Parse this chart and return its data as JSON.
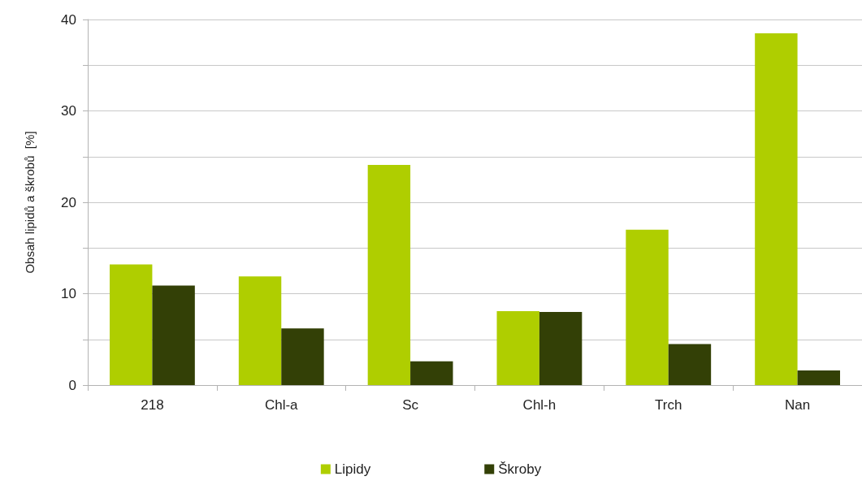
{
  "chart_data": {
    "type": "bar",
    "ylabel": "Obsah lipidů a škrobů  [%]",
    "categories": [
      "218",
      "Chl-a",
      "Sc",
      "Chl-h",
      "Trch",
      "Nan"
    ],
    "series": [
      {
        "name": "Lipidy",
        "color": "#afce00",
        "values": [
          13.2,
          11.9,
          24.1,
          8.1,
          17.0,
          38.5
        ]
      },
      {
        "name": "Škroby",
        "color": "#334006",
        "values": [
          10.9,
          6.2,
          2.6,
          8.0,
          4.5,
          1.6
        ]
      }
    ],
    "ylim": [
      0,
      40
    ],
    "yticks": [
      0,
      {
        "value": 5,
        "label": null
      },
      10,
      {
        "value": 15,
        "label": null
      },
      20,
      {
        "value": 25,
        "label": null
      },
      30,
      {
        "value": 35,
        "label": null
      },
      40
    ],
    "grid": "y",
    "legend": "bottom"
  }
}
